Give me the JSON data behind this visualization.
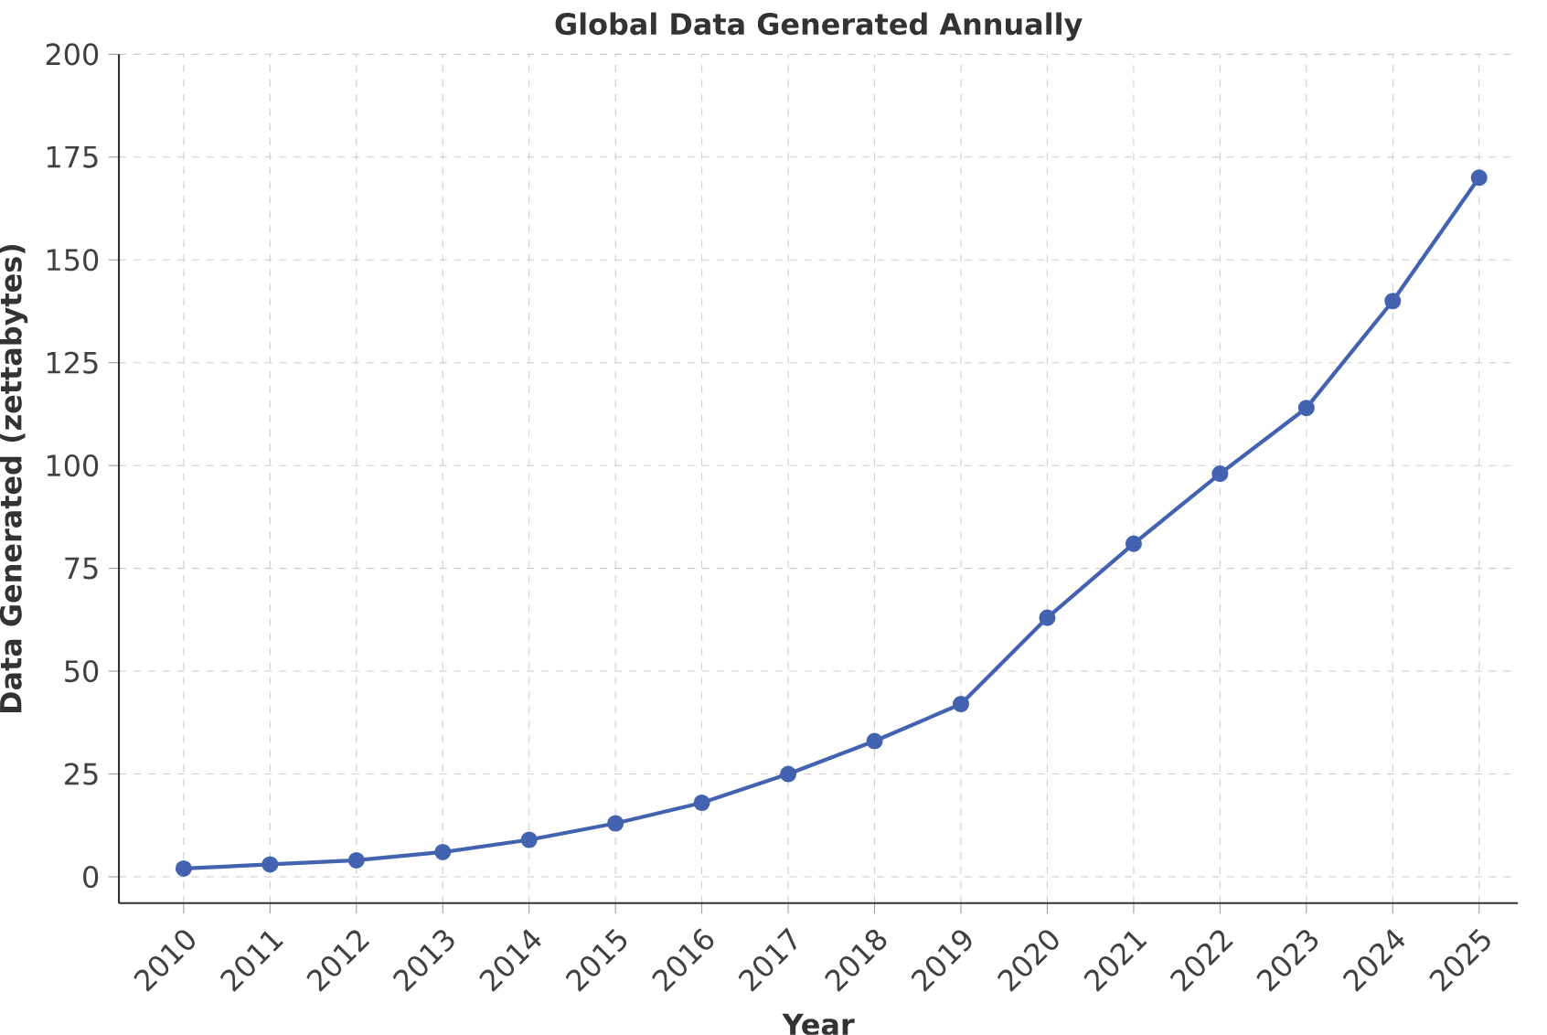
{
  "chart_data": {
    "type": "line",
    "title": "Global Data Generated Annually",
    "xlabel": "Year",
    "ylabel": "Data Generated (zettabytes)",
    "categories": [
      "2010",
      "2011",
      "2012",
      "2013",
      "2014",
      "2015",
      "2016",
      "2017",
      "2018",
      "2019",
      "2020",
      "2021",
      "2022",
      "2023",
      "2024",
      "2025"
    ],
    "values": [
      2,
      3,
      4,
      6,
      9,
      13,
      18,
      25,
      33,
      42,
      63,
      81,
      98,
      114,
      140,
      170
    ],
    "color": "#4363b0",
    "ylim": [
      -6.4,
      200
    ],
    "yticks": [
      0,
      25,
      50,
      75,
      100,
      125,
      150,
      175,
      200
    ],
    "grid": true,
    "marker": "circle",
    "line_style": "solid"
  }
}
